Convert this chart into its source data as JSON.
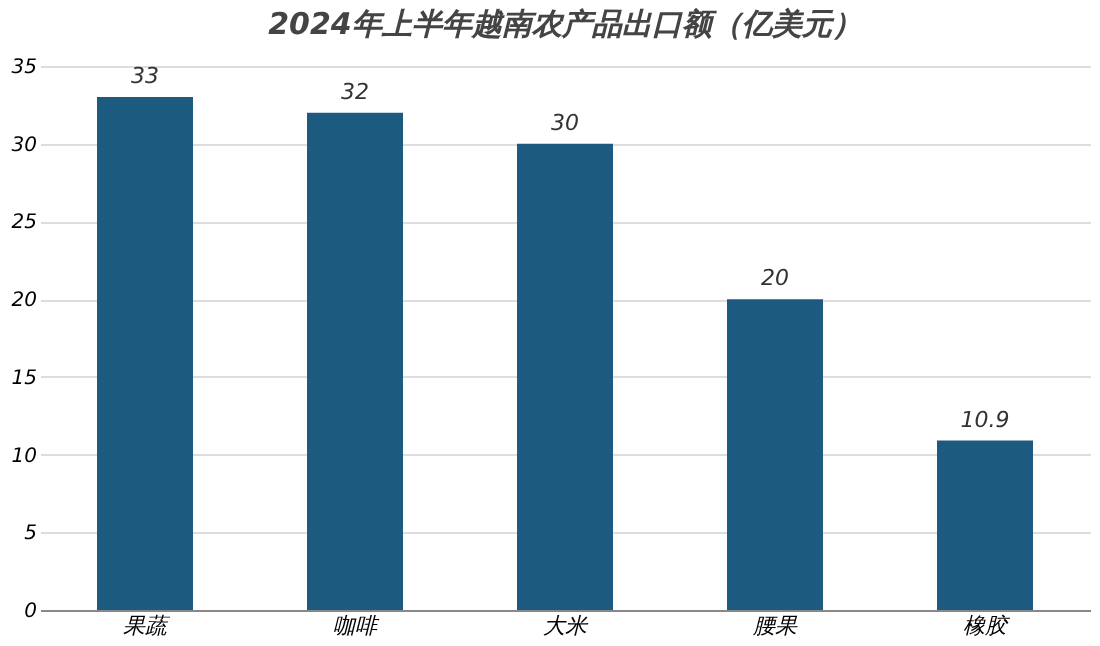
{
  "chart_data": {
    "type": "bar",
    "title": "2024年上半年越南农产品出口额（亿美元）",
    "categories": [
      "果蔬",
      "咖啡",
      "大米",
      "腰果",
      "橡胶"
    ],
    "values": [
      33,
      32,
      30,
      20,
      10.9
    ],
    "color": "#1d5a80",
    "ylim": [
      0,
      35
    ],
    "yticks": [
      0,
      5,
      10,
      15,
      20,
      25,
      30,
      35
    ],
    "grid": "y",
    "data_labels": true
  }
}
